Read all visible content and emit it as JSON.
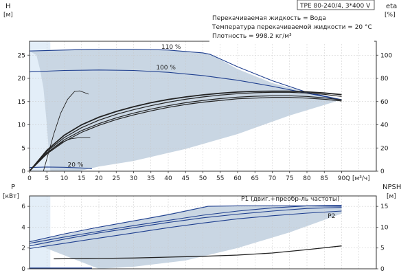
{
  "colors": {
    "curve": "#1f3f8f",
    "duty": "#222222",
    "region": "#c9d6e3",
    "region_light": "#e3eef8",
    "grid": "#c8c8c8",
    "frame": "#333333"
  },
  "chart_data": [
    {
      "type": "line",
      "panel": "head-efficiency",
      "title": "TPE 80-240/4, 3*400 V",
      "info_lines": [
        "Перекачиваемая жидкость = Вода",
        "Температура перекачиваемой жидкости = 20 °C",
        "Плотность = 998.2 кг/м³"
      ],
      "xlabel": "Q [м³/ч]",
      "xlim": [
        0,
        100
      ],
      "x_ticks": [
        0,
        5,
        10,
        15,
        20,
        25,
        30,
        35,
        40,
        45,
        50,
        55,
        60,
        65,
        70,
        75,
        80,
        85,
        90
      ],
      "ylabel_left": "H",
      "ylabel_left_unit": "[м]",
      "ylim_left": [
        0,
        28
      ],
      "y_ticks_left": [
        0,
        5,
        10,
        15,
        20,
        25
      ],
      "ylabel_right": "eta",
      "ylabel_right_unit": "[%]",
      "ylim_right": [
        0,
        112
      ],
      "y_ticks_right": [
        0,
        20,
        40,
        60,
        80,
        100
      ],
      "grid": true,
      "operating_region": [
        [
          0,
          25.9
        ],
        [
          5,
          26.1
        ],
        [
          15,
          26.3
        ],
        [
          30,
          26.3
        ],
        [
          45,
          25.9
        ],
        [
          52,
          25.3
        ],
        [
          60,
          22
        ],
        [
          70,
          19
        ],
        [
          80,
          17
        ],
        [
          90,
          15.4
        ],
        [
          75,
          12
        ],
        [
          60,
          8
        ],
        [
          45,
          4.8
        ],
        [
          30,
          2.2
        ],
        [
          20,
          1
        ],
        [
          14,
          0
        ],
        [
          6,
          0
        ],
        [
          5,
          10
        ],
        [
          4,
          18
        ],
        [
          3,
          22
        ],
        [
          2,
          25
        ],
        [
          0,
          25.9
        ]
      ],
      "series": [
        {
          "name": "110 %",
          "axis": "left",
          "x": [
            0,
            10,
            20,
            30,
            40,
            50,
            52,
            60,
            70,
            80,
            90
          ],
          "y": [
            25.9,
            26.1,
            26.3,
            26.3,
            26.1,
            25.5,
            25.2,
            22.5,
            19.5,
            17,
            15.4
          ]
        },
        {
          "name": "100 %",
          "axis": "left",
          "x": [
            0,
            10,
            20,
            30,
            40,
            50,
            60,
            70,
            80,
            90
          ],
          "y": [
            21.4,
            21.7,
            21.8,
            21.7,
            21.3,
            20.6,
            19.6,
            18.3,
            16.8,
            15.4
          ]
        },
        {
          "name": "20 %",
          "axis": "left",
          "x": [
            0,
            5,
            10,
            15,
            18
          ],
          "y": [
            0.8,
            0.9,
            0.85,
            0.7,
            0.55
          ]
        },
        {
          "name": "",
          "axis": "right",
          "x": [
            0,
            5,
            10,
            15,
            20,
            25,
            30,
            35,
            40,
            45,
            50,
            55,
            60,
            65,
            70,
            75,
            80,
            85,
            90
          ],
          "y": [
            0,
            15,
            25.5,
            33.5,
            39.5,
            44.5,
            48.5,
            52,
            55,
            57.5,
            59.5,
            61,
            62.4,
            63,
            63.6,
            63.6,
            63,
            62,
            60.5
          ]
        },
        {
          "name": "",
          "axis": "right",
          "x": [
            0,
            5,
            10,
            15,
            20,
            25,
            30,
            35,
            40,
            45,
            50,
            55,
            60,
            65,
            70,
            75,
            80,
            85,
            90
          ],
          "y": [
            0,
            15.8,
            27,
            35,
            41,
            46,
            50,
            53.5,
            56.5,
            59,
            61,
            62.6,
            63.8,
            64.6,
            65,
            65,
            64.4,
            63.2,
            61.4
          ]
        },
        {
          "name": "",
          "axis": "right",
          "x": [
            0,
            5,
            10,
            15,
            20,
            25,
            30,
            35,
            40,
            45,
            50,
            55,
            60,
            65,
            70,
            75,
            80,
            85,
            90
          ],
          "y": [
            0,
            17,
            29,
            37.5,
            44,
            49,
            53,
            56.5,
            59.5,
            62,
            64,
            65.6,
            66.8,
            67.6,
            68,
            68,
            67.4,
            66.2,
            64.4
          ]
        },
        {
          "name": "",
          "axis": "right",
          "x": [
            0,
            5,
            10,
            15,
            20,
            25,
            30,
            35,
            40,
            45,
            50,
            55,
            60,
            65,
            70,
            75,
            80,
            85,
            90
          ],
          "y": [
            0,
            18,
            31,
            40,
            46.5,
            51.5,
            55.5,
            59,
            61.8,
            64,
            65.8,
            67.2,
            68.2,
            68.8,
            69,
            69,
            68.4,
            67.4,
            66
          ]
        },
        {
          "name": "",
          "axis": "left",
          "x": [
            4,
            7,
            9,
            11,
            13,
            14.5,
            17
          ],
          "y": [
            0,
            8,
            12.5,
            15.5,
            17.2,
            17.3,
            16.6
          ]
        },
        {
          "name": "",
          "axis": "left",
          "x": [
            0,
            4,
            7,
            9.5,
            12,
            14,
            15,
            17.5
          ],
          "y": [
            0,
            3,
            5,
            6.3,
            7,
            7.2,
            7.2,
            7.2
          ]
        }
      ],
      "labels": [
        {
          "text": "110 %",
          "x": 38,
          "y": 26.4
        },
        {
          "text": "100 %",
          "x": 36.5,
          "y": 21.9
        },
        {
          "text": "20 %",
          "x": 11,
          "y": 1.0
        }
      ]
    },
    {
      "type": "line",
      "panel": "power-npsh",
      "xlim": [
        0,
        100
      ],
      "ylabel_left": "P",
      "ylabel_left_unit": "[кВт]",
      "ylim_left": [
        0,
        7
      ],
      "y_ticks_left": [
        0,
        2,
        4,
        6
      ],
      "ylabel_right": "NPSH",
      "ylabel_right_unit": "[м]",
      "ylim_right": [
        0,
        17.5
      ],
      "y_ticks_right": [
        0,
        5,
        10,
        15
      ],
      "grid": true,
      "operating_region": [
        [
          0,
          2.6
        ],
        [
          51.5,
          6.05
        ],
        [
          90,
          6.05
        ],
        [
          90,
          5.3
        ],
        [
          75,
          3.5
        ],
        [
          60,
          2
        ],
        [
          45,
          0.8
        ],
        [
          30,
          0.2
        ],
        [
          20,
          0
        ]
      ],
      "series": [
        {
          "name": "P1 (двиг.+преобр-ль частоты)",
          "axis": "left",
          "x": [
            0,
            10,
            20,
            30,
            40,
            51.5,
            60,
            70,
            80,
            90
          ],
          "y": [
            2.6,
            3.35,
            4,
            4.6,
            5.2,
            6.0,
            6.05,
            6.05,
            6.05,
            6.0
          ]
        },
        {
          "name": "P2",
          "axis": "left",
          "x": [
            0,
            10,
            20,
            30,
            40,
            50,
            60,
            70,
            80,
            90
          ],
          "y": [
            1.95,
            2.45,
            2.95,
            3.45,
            3.95,
            4.4,
            4.8,
            5.1,
            5.35,
            5.55
          ]
        },
        {
          "name": "",
          "axis": "left",
          "x": [
            0,
            10,
            20,
            30,
            40,
            50,
            60,
            70,
            80,
            90
          ],
          "y": [
            2.2,
            2.85,
            3.45,
            3.95,
            4.45,
            4.9,
            5.25,
            5.55,
            5.8,
            5.9
          ]
        },
        {
          "name": "",
          "axis": "left",
          "x": [
            0,
            10,
            20,
            30,
            40,
            50,
            60,
            70,
            80,
            90
          ],
          "y": [
            2.45,
            3.05,
            3.6,
            4.15,
            4.65,
            5.15,
            5.55,
            5.85,
            6.05,
            6.1
          ]
        },
        {
          "name": "",
          "axis": "left",
          "x": [
            0,
            18
          ],
          "y": [
            0.05,
            0.05
          ]
        },
        {
          "name": "",
          "axis": "right",
          "x": [
            7,
            20,
            30,
            40,
            50,
            60,
            70,
            80,
            90
          ],
          "y": [
            2.4,
            2.5,
            2.6,
            2.8,
            3.0,
            3.3,
            3.8,
            4.6,
            5.5
          ]
        }
      ],
      "labels": [
        {
          "text": "P1 (двиг.+преобр-ль частоты)",
          "x": 61,
          "y": 6.55
        },
        {
          "text": "P2",
          "x": 86,
          "y": 4.9
        }
      ]
    }
  ]
}
